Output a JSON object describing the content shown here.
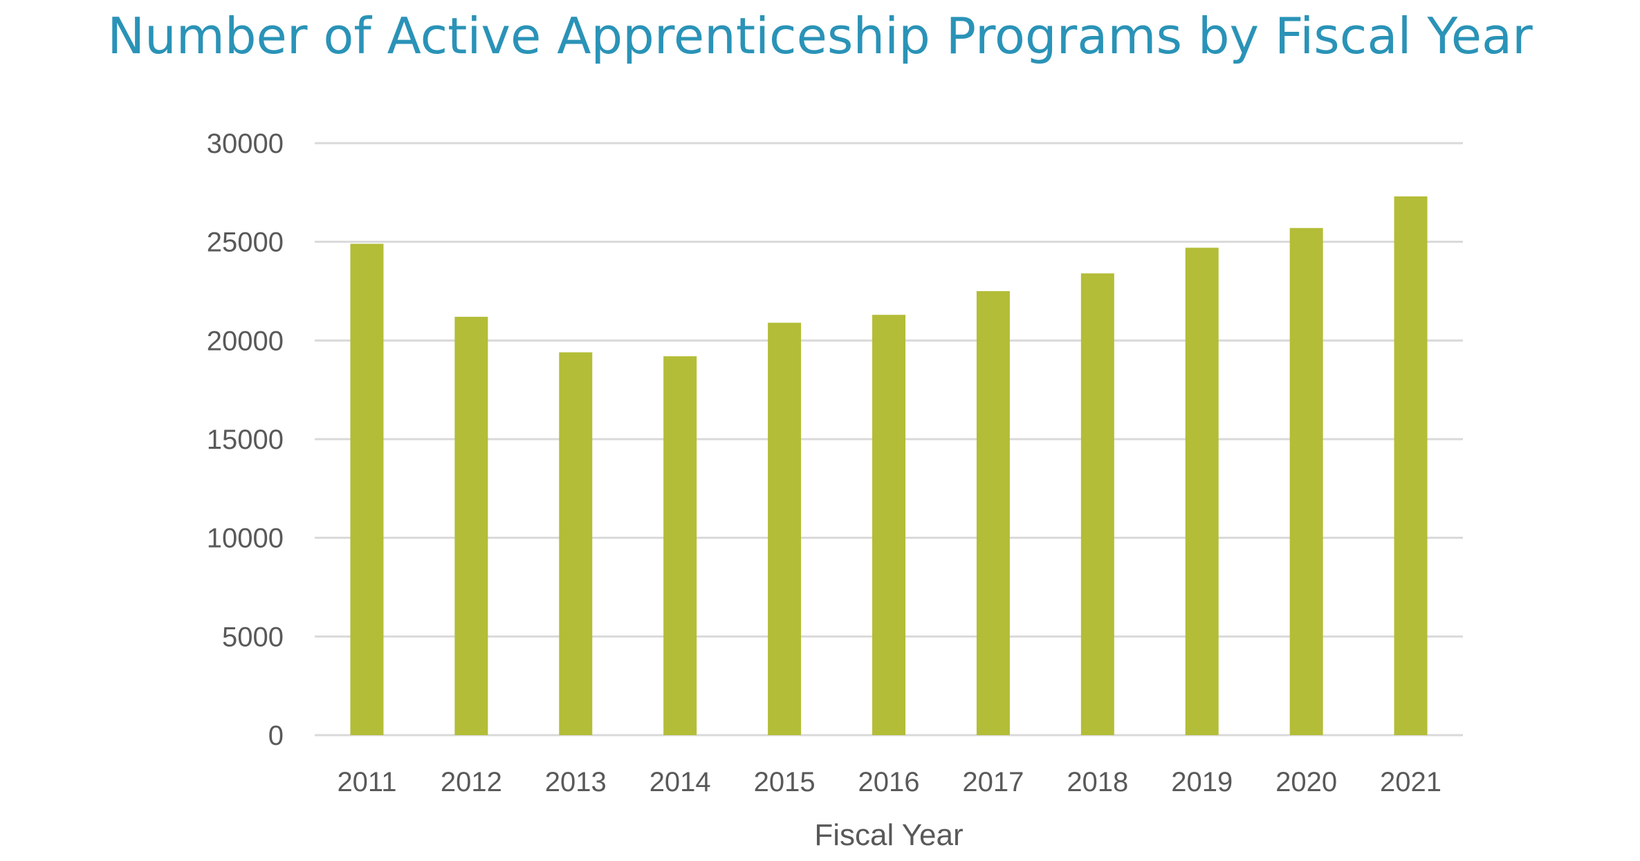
{
  "chart_data": {
    "type": "bar",
    "title": "Number of Active Apprenticeship Programs by Fiscal Year",
    "xlabel": "Fiscal Year",
    "ylabel": "",
    "categories": [
      "2011",
      "2012",
      "2013",
      "2014",
      "2015",
      "2016",
      "2017",
      "2018",
      "2019",
      "2020",
      "2021"
    ],
    "values": [
      24900,
      21200,
      19400,
      19200,
      20900,
      21300,
      22500,
      23400,
      24700,
      25700,
      27300
    ],
    "ylim": [
      0,
      30000
    ],
    "yticks": [
      "0",
      "5000",
      "10000",
      "15000",
      "20000",
      "25000",
      "30000"
    ],
    "grid": true,
    "legend": "none",
    "colors": {
      "bar": "#b3bd37",
      "grid": "#d9d9d9",
      "title": "#2a93b7",
      "text": "#595959"
    }
  }
}
